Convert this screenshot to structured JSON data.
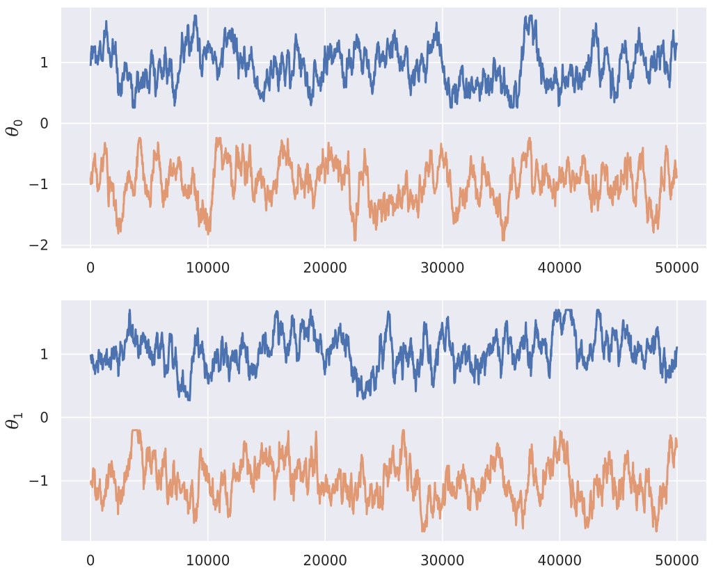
{
  "colors": {
    "background": "#eaeaf2",
    "grid": "#ffffff",
    "series_1": "#4c72b0",
    "series_2": "#dd8452"
  },
  "chart_data": [
    {
      "type": "line",
      "ylabel_symbol": "θ",
      "ylabel_subscript": "0",
      "xlim": [
        -2500,
        52500
      ],
      "ylim": [
        -2.05,
        1.9
      ],
      "xticks": [
        0,
        10000,
        20000,
        30000,
        40000,
        50000
      ],
      "yticks": [
        1,
        0,
        -1,
        -2
      ],
      "grid": true,
      "n_samples": 50000,
      "series": [
        {
          "color": "#4c72b0",
          "mean": 1.0,
          "min": 0.26,
          "max": 1.77
        },
        {
          "color": "#dd8452",
          "mean": -1.0,
          "min": -1.92,
          "max": -0.24
        }
      ]
    },
    {
      "type": "line",
      "ylabel_symbol": "θ",
      "ylabel_subscript": "1",
      "xlim": [
        -2500,
        52500
      ],
      "ylim": [
        -1.95,
        1.85
      ],
      "xticks": [
        0,
        10000,
        20000,
        30000,
        40000,
        50000
      ],
      "yticks": [
        1,
        0,
        -1
      ],
      "grid": true,
      "n_samples": 50000,
      "series": [
        {
          "color": "#4c72b0",
          "mean": 1.0,
          "min": 0.27,
          "max": 1.7
        },
        {
          "color": "#dd8452",
          "mean": -1.0,
          "min": -1.8,
          "max": -0.2
        }
      ]
    }
  ]
}
